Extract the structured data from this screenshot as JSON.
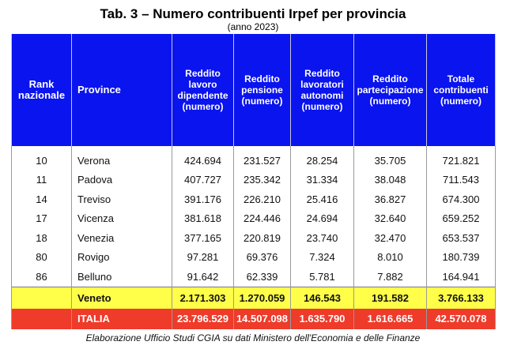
{
  "title": "Tab. 3 – Numero contribuenti Irpef per provincia",
  "subtitle": "(anno 2023)",
  "footer": "Elaborazione Ufficio Studi CGIA su dati Ministero dell'Economia e delle Finanze",
  "chart_data": {
    "type": "table",
    "columns": [
      "Rank nazionale",
      "Province",
      "Reddito lavoro dipendente (numero)",
      "Reddito pensione (numero)",
      "Reddito lavoratori autonomi (numero)",
      "Reddito partecipazione (numero)",
      "Totale contribuenti (numero)"
    ],
    "rows": [
      [
        "10",
        "Verona",
        "424.694",
        "231.527",
        "28.254",
        "35.705",
        "721.821"
      ],
      [
        "11",
        "Padova",
        "407.727",
        "235.342",
        "31.334",
        "38.048",
        "711.543"
      ],
      [
        "14",
        "Treviso",
        "391.176",
        "226.210",
        "25.416",
        "36.827",
        "674.300"
      ],
      [
        "17",
        "Vicenza",
        "381.618",
        "224.446",
        "24.694",
        "32.640",
        "659.252"
      ],
      [
        "18",
        "Venezia",
        "377.165",
        "220.819",
        "23.740",
        "32.470",
        "653.537"
      ],
      [
        "80",
        "Rovigo",
        "97.281",
        "69.376",
        "7.324",
        "8.010",
        "180.739"
      ],
      [
        "86",
        "Belluno",
        "91.642",
        "62.339",
        "5.781",
        "7.882",
        "164.941"
      ]
    ],
    "totals": [
      [
        "",
        "Veneto",
        "2.171.303",
        "1.270.059",
        "146.543",
        "191.582",
        "3.766.133"
      ],
      [
        "",
        "ITALIA",
        "23.796.529",
        "14.507.098",
        "1.635.790",
        "1.616.665",
        "42.570.078"
      ]
    ],
    "colors": {
      "header": "#0a14ee",
      "veneto": "#ffff4a",
      "italia": "#ee3b2a"
    }
  }
}
